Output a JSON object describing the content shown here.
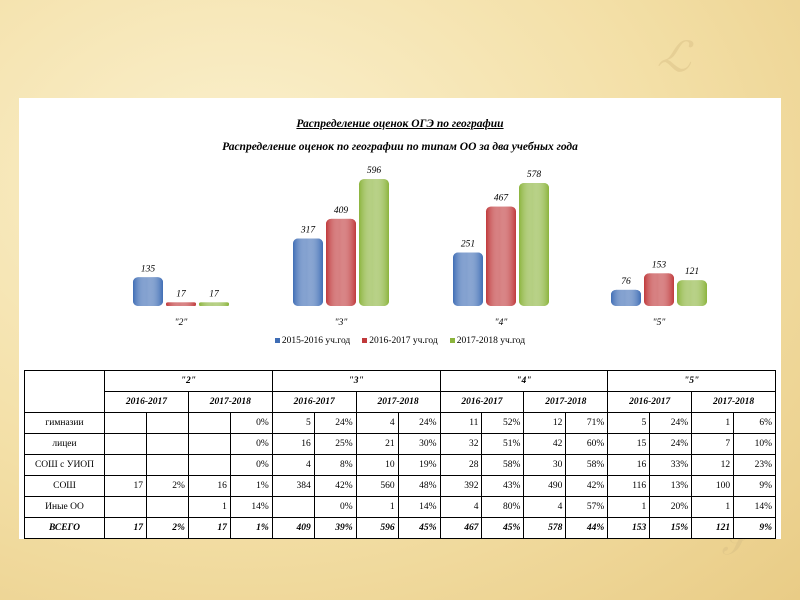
{
  "chart_data": {
    "type": "bar",
    "title": "Распределение оценок ОГЭ по географии",
    "subtitle": "Распределение оценок по географии по типам ОО за два учебных года",
    "categories": [
      "\"2\"",
      "\"3\"",
      "\"4\"",
      "\"5\""
    ],
    "series": [
      {
        "name": "2015-2016 уч.год",
        "values": [
          135,
          317,
          251,
          76
        ],
        "color": "#3f6db5"
      },
      {
        "name": "2016-2017 уч.год",
        "values": [
          17,
          409,
          467,
          153
        ],
        "color": "#c0393b"
      },
      {
        "name": "2017-2018 уч.год",
        "values": [
          17,
          596,
          578,
          121
        ],
        "color": "#8bb43c"
      }
    ],
    "ylim": [
      0,
      620
    ],
    "grid": false,
    "legend": "bottom"
  },
  "table": {
    "grades": [
      "\"2\"",
      "\"3\"",
      "\"4\"",
      "\"5\""
    ],
    "years": [
      "2016-2017",
      "2017-2018"
    ],
    "rows": [
      {
        "label": "гимназии",
        "cells": [
          "",
          "",
          "",
          "0%",
          "5",
          "24%",
          "4",
          "24%",
          "11",
          "52%",
          "12",
          "71%",
          "5",
          "24%",
          "1",
          "6%"
        ]
      },
      {
        "label": "лицеи",
        "cells": [
          "",
          "",
          "",
          "0%",
          "16",
          "25%",
          "21",
          "30%",
          "32",
          "51%",
          "42",
          "60%",
          "15",
          "24%",
          "7",
          "10%"
        ]
      },
      {
        "label": "СОШ с УИОП",
        "cells": [
          "",
          "",
          "",
          "0%",
          "4",
          "8%",
          "10",
          "19%",
          "28",
          "58%",
          "30",
          "58%",
          "16",
          "33%",
          "12",
          "23%"
        ]
      },
      {
        "label": "СОШ",
        "cells": [
          "17",
          "2%",
          "16",
          "1%",
          "384",
          "42%",
          "560",
          "48%",
          "392",
          "43%",
          "490",
          "42%",
          "116",
          "13%",
          "100",
          "9%"
        ]
      },
      {
        "label": "Иные ОО",
        "cells": [
          "",
          "",
          "1",
          "14%",
          "",
          "0%",
          "1",
          "14%",
          "4",
          "80%",
          "4",
          "57%",
          "1",
          "20%",
          "1",
          "14%"
        ]
      }
    ],
    "total": {
      "label": "ВСЕГО",
      "cells": [
        "17",
        "2%",
        "17",
        "1%",
        "409",
        "39%",
        "596",
        "45%",
        "467",
        "45%",
        "578",
        "44%",
        "153",
        "15%",
        "121",
        "9%"
      ]
    }
  }
}
